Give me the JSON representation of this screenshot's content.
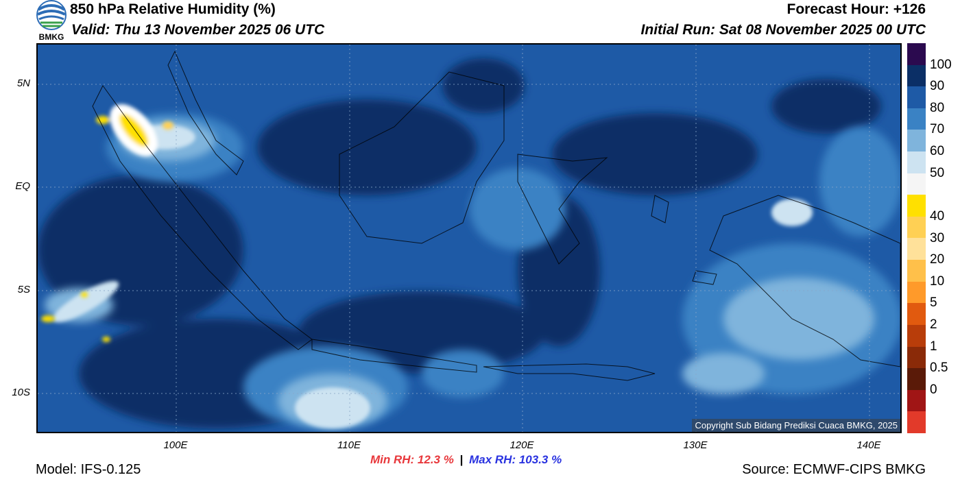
{
  "header": {
    "title": "850 hPa Relative Humidity (%)",
    "valid": "Valid: Thu 13 November 2025 06 UTC",
    "forecast_hour": "Forecast Hour: +126",
    "initial_run": "Initial Run: Sat 08 November 2025 00 UTC",
    "logo_text": "BMKG"
  },
  "map": {
    "lat_labels": [
      "5N",
      "EQ",
      "5S",
      "10S"
    ],
    "lon_labels": [
      "100E",
      "110E",
      "120E",
      "130E",
      "140E"
    ],
    "copyright": "Copyright Sub Bidang Prediksi Cuaca BMKG, 2025"
  },
  "colorbar": {
    "labels": [
      "100",
      "90",
      "80",
      "70",
      "60",
      "50",
      "40",
      "30",
      "20",
      "10",
      "5",
      "2",
      "1",
      "0.5",
      "0"
    ],
    "colors": [
      "#2b0a4f",
      "#0b2f66",
      "#1e5aa6",
      "#3a82c4",
      "#7fb4dc",
      "#cde3f1",
      "#f5f5f5",
      "#ffe000",
      "#ffd054",
      "#ffe19a",
      "#ffc04a",
      "#ff9a2a",
      "#e15a0f",
      "#b83d0a",
      "#8a2a08",
      "#5a1a08",
      "#a01515",
      "#e23a2a"
    ]
  },
  "stats": {
    "min_rh": "Min RH:  12.3 %",
    "separator": "|",
    "max_rh": "Max RH: 103.3 %"
  },
  "footer": {
    "model": "Model: IFS-0.125",
    "source": "Source: ECMWF-CIPS BMKG"
  }
}
